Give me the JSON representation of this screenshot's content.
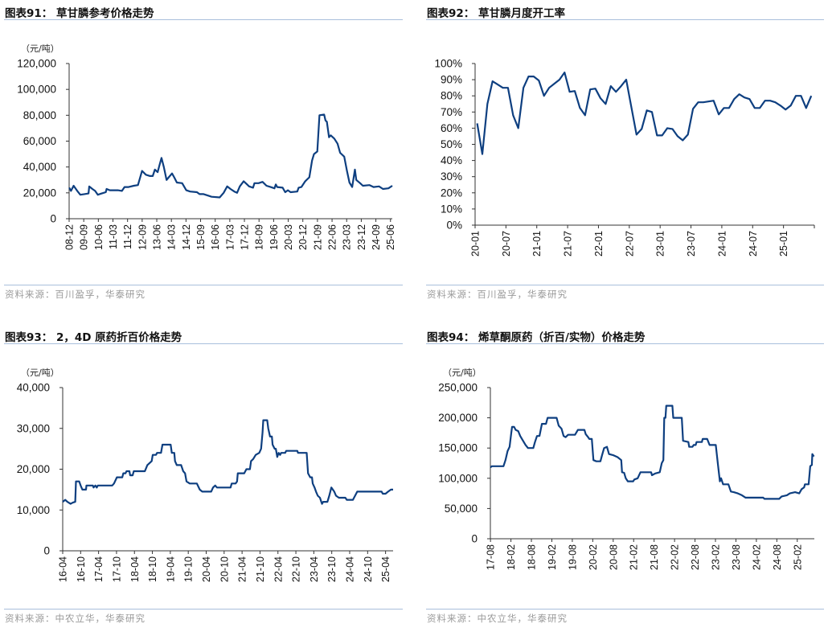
{
  "colors": {
    "line": "#0e3f80",
    "axis": "#333333",
    "rule": "#a9bfdc",
    "source": "#9a9a9a"
  },
  "panels": [
    {
      "title": "图表91：  草甘膦参考价格走势",
      "unit": "（元/吨）",
      "source": "资料来源：百川盈孚，华泰研究"
    },
    {
      "title": "图表92：  草甘膦月度开工率",
      "source": "资料来源：百川盈孚，华泰研究"
    },
    {
      "title": "图表93：  2，4D 原药折百价格走势",
      "unit": "（元/吨）",
      "source": "资料来源：中农立华，华泰研究"
    },
    {
      "title": "图表94：  烯草酮原药（折百/实物）价格走势",
      "unit": "（元/吨）",
      "source": "资料来源：中农立华，华泰研究"
    }
  ],
  "chart_data": [
    {
      "type": "line",
      "title": "草甘膦参考价格走势",
      "ylabel": "元/吨",
      "ylim": [
        0,
        120000
      ],
      "yticks": [
        0,
        20000,
        40000,
        60000,
        80000,
        100000,
        120000
      ],
      "ytick_labels": [
        "0",
        "20,000",
        "40,000",
        "60,000",
        "80,000",
        "100,000",
        "120,000"
      ],
      "xlim": [
        2008.917,
        2025.51
      ],
      "xticks": [
        2008.917,
        2009.667,
        2010.417,
        2011.167,
        2011.917,
        2012.667,
        2013.417,
        2014.167,
        2014.917,
        2015.667,
        2016.417,
        2017.167,
        2017.917,
        2018.667,
        2019.417,
        2020.167,
        2020.917,
        2021.667,
        2022.417,
        2023.167,
        2023.917,
        2024.667,
        2025.417
      ],
      "xtick_labels": [
        "08-12",
        "09-09",
        "10-06",
        "11-03",
        "11-12",
        "12-09",
        "13-06",
        "14-03",
        "14-12",
        "15-09",
        "16-06",
        "17-03",
        "17-12",
        "18-09",
        "19-06",
        "20-03",
        "20-12",
        "21-09",
        "22-06",
        "23-03",
        "23-12",
        "24-09",
        "25-06"
      ],
      "x": [
        2008.92,
        2009.01,
        2009.15,
        2009.36,
        2009.49,
        2009.7,
        2009.91,
        2009.95,
        2010.11,
        2010.25,
        2010.39,
        2010.59,
        2010.8,
        2010.84,
        2011.01,
        2011.42,
        2011.63,
        2011.76,
        2011.97,
        2012.24,
        2012.45,
        2012.66,
        2012.86,
        2013.07,
        2013.21,
        2013.32,
        2013.46,
        2013.55,
        2013.66,
        2013.78,
        2013.92,
        2014.03,
        2014.2,
        2014.31,
        2014.45,
        2014.72,
        2014.93,
        2015.13,
        2015.48,
        2015.61,
        2015.82,
        2016.03,
        2016.23,
        2016.65,
        2016.85,
        2017.03,
        2017.2,
        2017.4,
        2017.54,
        2017.68,
        2017.88,
        2018.02,
        2018.16,
        2018.36,
        2018.43,
        2018.64,
        2018.85,
        2019.05,
        2019.26,
        2019.46,
        2019.53,
        2019.6,
        2019.88,
        2020.01,
        2020.15,
        2020.29,
        2020.63,
        2020.7,
        2020.84,
        2021.04,
        2021.25,
        2021.39,
        2021.49,
        2021.66,
        2021.77,
        2022.01,
        2022.08,
        2022.15,
        2022.26,
        2022.35,
        2022.53,
        2022.7,
        2022.83,
        2023.04,
        2023.18,
        2023.31,
        2023.45,
        2023.59,
        2023.66,
        2023.86,
        2024.0,
        2024.34,
        2024.55,
        2024.83,
        2025.03,
        2025.31,
        2025.51
      ],
      "values": [
        24000,
        21500,
        25500,
        21000,
        18500,
        19000,
        19500,
        25000,
        23000,
        21500,
        18500,
        19500,
        20500,
        23000,
        22000,
        22000,
        21500,
        24500,
        24500,
        25500,
        26000,
        37000,
        34000,
        33000,
        33000,
        38000,
        36000,
        41000,
        47000,
        40000,
        30000,
        32000,
        35000,
        32000,
        28000,
        27500,
        22000,
        21000,
        20500,
        19000,
        19000,
        18000,
        17000,
        16500,
        20000,
        25000,
        23000,
        21000,
        20000,
        25000,
        29000,
        27000,
        25000,
        24000,
        27500,
        27500,
        28500,
        25500,
        24500,
        23500,
        26500,
        24500,
        24000,
        20500,
        22000,
        20500,
        21000,
        24000,
        24500,
        29000,
        32000,
        45000,
        50000,
        52000,
        80000,
        80500,
        76000,
        75000,
        63000,
        64500,
        62000,
        58000,
        51000,
        48000,
        37000,
        28000,
        24500,
        38000,
        30000,
        27500,
        25500,
        26000,
        24500,
        25000,
        23000,
        23500,
        25500
      ]
    },
    {
      "type": "line",
      "title": "草甘膦月度开工率",
      "ylim": [
        0,
        100
      ],
      "yticks": [
        0,
        10,
        20,
        30,
        40,
        50,
        60,
        70,
        80,
        90,
        100
      ],
      "ytick_labels": [
        "0%",
        "10%",
        "20%",
        "30%",
        "40%",
        "50%",
        "60%",
        "70%",
        "80%",
        "90%",
        "100%"
      ],
      "xlim": [
        0,
        66
      ],
      "xticks": [
        0,
        6,
        12,
        18,
        24,
        30,
        36,
        42,
        48,
        54,
        60,
        66
      ],
      "xtick_labels": [
        "20-01",
        "20-07",
        "21-01",
        "21-07",
        "22-01",
        "22-07",
        "23-01",
        "23-07",
        "24-01",
        "24-07",
        "25-01",
        ""
      ],
      "categories": [
        "20-01",
        "20-02",
        "20-03",
        "20-04",
        "20-05",
        "20-06",
        "20-07",
        "20-08",
        "20-09",
        "20-10",
        "20-11",
        "20-12",
        "21-01",
        "21-02",
        "21-03",
        "21-04",
        "21-05",
        "21-06",
        "21-07",
        "21-08",
        "21-09",
        "21-10",
        "21-11",
        "21-12",
        "22-01",
        "22-02",
        "22-03",
        "22-04",
        "22-05",
        "22-06",
        "22-07",
        "22-08",
        "22-09",
        "22-10",
        "22-11",
        "22-12",
        "23-01",
        "23-02",
        "23-03",
        "23-04",
        "23-05",
        "23-06",
        "23-07",
        "23-08",
        "23-09",
        "23-10",
        "23-11",
        "23-12",
        "24-01",
        "24-02",
        "24-03",
        "24-04",
        "24-05",
        "24-06",
        "24-07",
        "24-08",
        "24-09",
        "24-10",
        "24-11",
        "24-12",
        "25-01",
        "25-02",
        "25-03",
        "25-04",
        "25-05",
        "25-06"
      ],
      "values": [
        63,
        44,
        75,
        89,
        87,
        85,
        85,
        68,
        60,
        85,
        92,
        92,
        89.5,
        80,
        85,
        87.5,
        90,
        94.5,
        82.5,
        83,
        72.5,
        68,
        84,
        84.5,
        78.5,
        75,
        86,
        82.5,
        86,
        90,
        73,
        56,
        59.5,
        71,
        70,
        55.5,
        55.5,
        60,
        59.5,
        55,
        52.5,
        56,
        72,
        76,
        76,
        76.5,
        77,
        68.5,
        72.5,
        72.5,
        78,
        81,
        79,
        78,
        72.5,
        72.5,
        77,
        77,
        76,
        74,
        71.5,
        74,
        80,
        80,
        72.5,
        80
      ]
    },
    {
      "type": "line",
      "title": "2，4D 原药折百价格走势",
      "ylabel": "元/吨",
      "ylim": [
        0,
        40000
      ],
      "yticks": [
        0,
        10000,
        20000,
        30000,
        40000
      ],
      "ytick_labels": [
        "0",
        "10,000",
        "20,000",
        "30,000",
        "40,000"
      ],
      "xlim": [
        2016.25,
        2025.46
      ],
      "xticks": [
        2016.25,
        2016.75,
        2017.25,
        2017.75,
        2018.25,
        2018.75,
        2019.25,
        2019.75,
        2020.25,
        2020.75,
        2021.25,
        2021.75,
        2022.25,
        2022.75,
        2023.25,
        2023.75,
        2024.25,
        2024.75,
        2025.25
      ],
      "xtick_labels": [
        "16-04",
        "16-10",
        "17-04",
        "17-10",
        "18-04",
        "18-10",
        "19-04",
        "19-10",
        "20-04",
        "20-10",
        "21-04",
        "21-10",
        "22-04",
        "22-10",
        "23-04",
        "23-10",
        "24-04",
        "24-10",
        "25-04"
      ],
      "x": [
        2016.25,
        2016.32,
        2016.38,
        2016.47,
        2016.53,
        2016.6,
        2016.62,
        2016.71,
        2016.75,
        2016.8,
        2016.9,
        2016.91,
        2017.09,
        2017.11,
        2017.16,
        2017.2,
        2017.23,
        2017.63,
        2017.68,
        2017.76,
        2017.91,
        2017.94,
        2018.0,
        2018.03,
        2018.11,
        2018.13,
        2018.2,
        2018.23,
        2018.54,
        2018.61,
        2018.73,
        2018.76,
        2018.85,
        2018.88,
        2018.99,
        2019.03,
        2019.26,
        2019.29,
        2019.36,
        2019.38,
        2019.43,
        2019.55,
        2019.61,
        2019.66,
        2019.7,
        2019.79,
        2019.99,
        2020.07,
        2020.14,
        2020.39,
        2020.44,
        2020.5,
        2020.55,
        2020.93,
        2020.96,
        2021.07,
        2021.11,
        2021.13,
        2021.31,
        2021.37,
        2021.47,
        2021.5,
        2021.56,
        2021.63,
        2021.73,
        2021.78,
        2021.82,
        2021.84,
        2021.95,
        2021.98,
        2022.03,
        2022.08,
        2022.1,
        2022.16,
        2022.19,
        2022.23,
        2022.27,
        2022.31,
        2022.34,
        2022.45,
        2022.48,
        2022.79,
        2022.81,
        2023.05,
        2023.09,
        2023.15,
        2023.2,
        2023.22,
        2023.27,
        2023.31,
        2023.36,
        2023.42,
        2023.46,
        2023.48,
        2023.51,
        2023.63,
        2023.68,
        2023.74,
        2023.82,
        2023.87,
        2023.95,
        2024.13,
        2024.17,
        2024.34,
        2024.4,
        2024.46,
        2025.14,
        2025.17,
        2025.25,
        2025.32,
        2025.4,
        2025.46
      ],
      "values": [
        12000,
        12500,
        12000,
        11500,
        11800,
        12000,
        17000,
        17000,
        16000,
        15000,
        15000,
        16000,
        16000,
        15500,
        16000,
        15500,
        16000,
        16000,
        16500,
        18000,
        18000,
        19000,
        19000,
        19500,
        19500,
        18500,
        18500,
        19500,
        19500,
        21000,
        22000,
        23500,
        23500,
        24000,
        24000,
        26000,
        26000,
        24000,
        24000,
        22000,
        21000,
        21000,
        19500,
        19000,
        17000,
        16500,
        16500,
        15000,
        14500,
        14500,
        15500,
        16000,
        15500,
        15500,
        16500,
        16500,
        17000,
        19000,
        19000,
        20000,
        20000,
        22000,
        22500,
        23500,
        24000,
        25000,
        29000,
        32000,
        32000,
        30000,
        28000,
        28000,
        26000,
        25000,
        25000,
        23000,
        24000,
        23500,
        24000,
        24000,
        24500,
        24500,
        24000,
        24000,
        19000,
        18000,
        18000,
        16500,
        15500,
        14500,
        13500,
        13000,
        12000,
        11500,
        12000,
        12000,
        13500,
        15500,
        14500,
        13500,
        13000,
        13000,
        12500,
        12500,
        13500,
        14500,
        14500,
        14000,
        14000,
        14500,
        15000,
        15000
      ]
    },
    {
      "type": "line",
      "title": "烯草酮原药（折百/实物）价格走势",
      "ylabel": "元/吨",
      "ylim": [
        0,
        250000
      ],
      "yticks": [
        0,
        50000,
        100000,
        150000,
        200000,
        250000
      ],
      "ytick_labels": [
        "0",
        "50,000",
        "100,000",
        "150,000",
        "200,000",
        "250,000"
      ],
      "xlim": [
        2017.58,
        2025.5
      ],
      "xticks": [
        2017.583,
        2018.083,
        2018.583,
        2019.083,
        2019.583,
        2020.083,
        2020.583,
        2021.083,
        2021.583,
        2022.083,
        2022.583,
        2023.083,
        2023.583,
        2024.083,
        2024.583,
        2025.083
      ],
      "xtick_labels": [
        "17-08",
        "18-02",
        "18-08",
        "19-02",
        "19-08",
        "20-02",
        "20-08",
        "21-02",
        "21-08",
        "22-02",
        "22-08",
        "23-02",
        "23-08",
        "24-02",
        "24-08",
        "25-02"
      ],
      "x": [
        2017.58,
        2017.62,
        2017.9,
        2017.95,
        2018.0,
        2018.05,
        2018.09,
        2018.11,
        2018.16,
        2018.2,
        2018.26,
        2018.31,
        2018.37,
        2018.44,
        2018.5,
        2018.63,
        2018.67,
        2018.72,
        2018.78,
        2018.84,
        2018.94,
        2018.98,
        2019.2,
        2019.25,
        2019.32,
        2019.37,
        2019.42,
        2019.48,
        2019.65,
        2019.72,
        2019.88,
        2019.91,
        2019.97,
        2020.0,
        2020.06,
        2020.1,
        2020.17,
        2020.27,
        2020.31,
        2020.36,
        2020.43,
        2020.48,
        2020.59,
        2020.69,
        2020.78,
        2020.8,
        2020.85,
        2020.89,
        2020.94,
        2021.07,
        2021.1,
        2021.18,
        2021.25,
        2021.51,
        2021.53,
        2021.61,
        2021.72,
        2021.77,
        2021.81,
        2021.83,
        2021.86,
        2021.88,
        2022.03,
        2022.05,
        2022.26,
        2022.29,
        2022.42,
        2022.44,
        2022.52,
        2022.55,
        2022.6,
        2022.62,
        2022.75,
        2022.77,
        2022.88,
        2022.94,
        2023.09,
        2023.14,
        2023.19,
        2023.22,
        2023.27,
        2023.4,
        2023.46,
        2023.53,
        2023.63,
        2023.73,
        2023.82,
        2024.25,
        2024.28,
        2024.64,
        2024.7,
        2024.83,
        2024.9,
        2025.03,
        2025.13,
        2025.19,
        2025.25,
        2025.27,
        2025.36,
        2025.4,
        2025.44,
        2025.45,
        2025.49
      ],
      "values": [
        118000,
        120000,
        120000,
        130000,
        145000,
        152000,
        175000,
        185000,
        185000,
        180000,
        178000,
        170000,
        163000,
        155000,
        150000,
        150000,
        160000,
        170000,
        170000,
        190000,
        190000,
        200000,
        200000,
        187000,
        182000,
        170000,
        168000,
        172000,
        172000,
        180000,
        180000,
        173000,
        168000,
        165000,
        165000,
        130000,
        128000,
        128000,
        138000,
        150000,
        152000,
        140000,
        138000,
        135000,
        130000,
        110000,
        109000,
        100000,
        95000,
        95000,
        98000,
        100000,
        110000,
        110000,
        105000,
        108000,
        110000,
        125000,
        130000,
        200000,
        200000,
        220000,
        220000,
        200000,
        200000,
        162000,
        160000,
        152000,
        152000,
        155000,
        155000,
        160000,
        160000,
        165000,
        165000,
        155000,
        155000,
        125000,
        95000,
        100000,
        90000,
        90000,
        78000,
        77000,
        75000,
        72000,
        68000,
        68000,
        66000,
        66000,
        70000,
        72000,
        75000,
        77000,
        75000,
        82000,
        85000,
        90000,
        90000,
        120000,
        122000,
        140000,
        136000
      ]
    }
  ]
}
